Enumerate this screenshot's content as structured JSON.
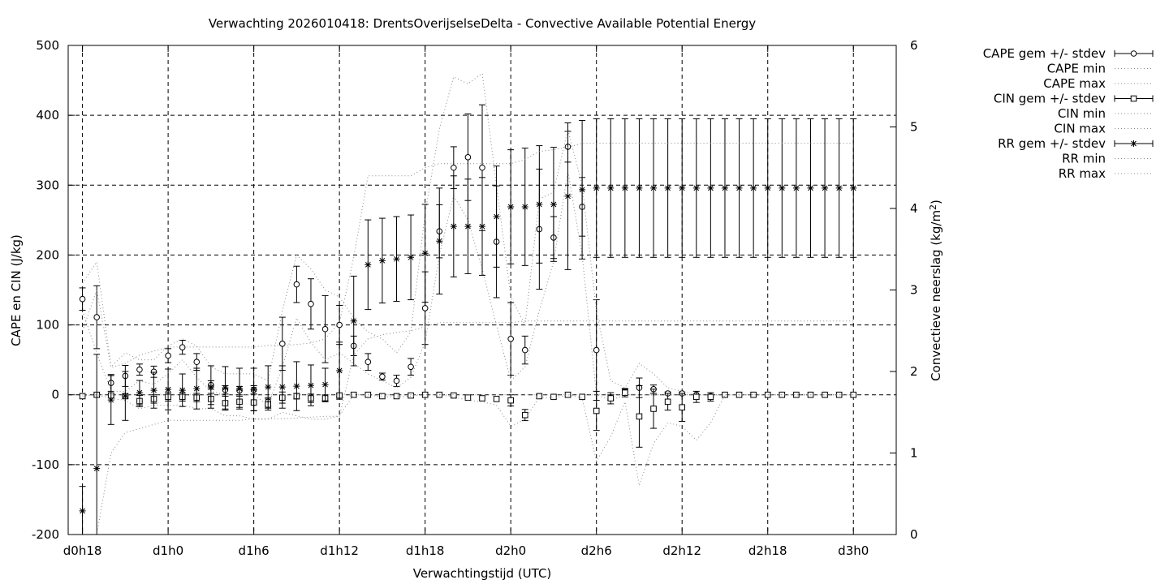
{
  "chart_data": {
    "type": "line",
    "title": "Verwachting 2026010418: DrentsOverijselseDelta - Convective Available Potential Energy",
    "xlabel": "Verwachtingstijd (UTC)",
    "ylabel": "CAPE en CIN (J/kg)",
    "y2label_main": "Convectieve neerslag (kg/m",
    "y2label_sup": "2",
    "y2label_end": ")",
    "ylim": [
      -200,
      500
    ],
    "y2lim": [
      0,
      6
    ],
    "xlim": [
      17,
      75
    ],
    "grid": "on",
    "legend_placement": "top-right outside",
    "x_ticks": [
      {
        "x": 18,
        "label": "d0h18"
      },
      {
        "x": 24,
        "label": "d1h0"
      },
      {
        "x": 30,
        "label": "d1h6"
      },
      {
        "x": 36,
        "label": "d1h12"
      },
      {
        "x": 42,
        "label": "d1h18"
      },
      {
        "x": 48,
        "label": "d2h0"
      },
      {
        "x": 54,
        "label": "d2h6"
      },
      {
        "x": 60,
        "label": "d2h12"
      },
      {
        "x": 66,
        "label": "d2h18"
      },
      {
        "x": 72,
        "label": "d3h0"
      }
    ],
    "y_ticks": [
      {
        "v": 500,
        "label": "500"
      },
      {
        "v": 400,
        "label": "400"
      },
      {
        "v": 300,
        "label": "300"
      },
      {
        "v": 200,
        "label": "200"
      },
      {
        "v": 100,
        "label": "100"
      },
      {
        "v": 0,
        "label": "0"
      },
      {
        "v": -100,
        "label": "-100"
      },
      {
        "v": -200,
        "label": "-200"
      }
    ],
    "y2_ticks": [
      {
        "v": 6,
        "label": "6"
      },
      {
        "v": 5,
        "label": "5"
      },
      {
        "v": 4,
        "label": "4"
      },
      {
        "v": 3,
        "label": "3"
      },
      {
        "v": 2,
        "label": "2"
      },
      {
        "v": 1,
        "label": "1"
      },
      {
        "v": 0,
        "label": "0"
      }
    ],
    "series": [
      {
        "name": "CAPE gem +/- stdev",
        "axis": "y1",
        "marker": "circle",
        "errorbars": true,
        "x": [
          18,
          19,
          20,
          21,
          22,
          23,
          24,
          25,
          26,
          27,
          28,
          29,
          30,
          31,
          32,
          33,
          34,
          35,
          36,
          37,
          38,
          39,
          40,
          41,
          42,
          43,
          44,
          45,
          46,
          47,
          48,
          49,
          50,
          51,
          52,
          53,
          54,
          55,
          56,
          57,
          58,
          59,
          60,
          61,
          62,
          63,
          64,
          65,
          66,
          67,
          68,
          69,
          70,
          71,
          72
        ],
        "values": [
          137,
          111,
          17,
          27,
          36,
          33,
          56,
          68,
          47,
          14,
          7,
          6,
          7,
          -10,
          73,
          158,
          130,
          94,
          100,
          70,
          47,
          26,
          20,
          40,
          124,
          234,
          325,
          340,
          325,
          219,
          80,
          64,
          237,
          225,
          355,
          269,
          64,
          -4,
          4,
          10,
          8,
          2,
          2,
          0,
          -2,
          0,
          0,
          0,
          0,
          0,
          0,
          0,
          0,
          0,
          0
        ],
        "stdev": [
          16,
          45,
          12,
          15,
          8,
          8,
          10,
          10,
          12,
          6,
          6,
          6,
          6,
          6,
          38,
          26,
          36,
          48,
          28,
          14,
          12,
          5,
          8,
          12,
          52,
          38,
          30,
          62,
          90,
          80,
          52,
          20,
          86,
          30,
          22,
          42,
          72,
          4,
          4,
          14,
          6,
          2,
          2,
          0,
          0,
          0,
          0,
          0,
          0,
          0,
          0,
          0,
          0,
          0,
          0
        ]
      },
      {
        "name": "CAPE min",
        "axis": "y1",
        "line": "dotted",
        "x": [
          18,
          19,
          20,
          21,
          22,
          23,
          24,
          25,
          26,
          27,
          28,
          29,
          30,
          31,
          32,
          33,
          34,
          35,
          36,
          37,
          38,
          39,
          40,
          41,
          42,
          43,
          44,
          45,
          46,
          47,
          48,
          49,
          50,
          51,
          52,
          53,
          54,
          55,
          56,
          57,
          58,
          59,
          60,
          61,
          62,
          63,
          64,
          65,
          66,
          67,
          68,
          69,
          70,
          71,
          72
        ],
        "values": [
          120,
          60,
          5,
          5,
          20,
          15,
          30,
          50,
          25,
          5,
          0,
          0,
          0,
          -15,
          40,
          110,
          75,
          50,
          60,
          45,
          30,
          20,
          10,
          25,
          75,
          200,
          285,
          250,
          180,
          100,
          20,
          40,
          120,
          190,
          320,
          200,
          0,
          -8,
          0,
          0,
          0,
          0,
          0,
          0,
          0,
          0,
          0,
          0,
          0,
          0,
          0,
          0,
          0,
          0,
          0
        ]
      },
      {
        "name": "CAPE max",
        "axis": "y1",
        "line": "dotted",
        "x": [
          18,
          19,
          20,
          21,
          22,
          23,
          24,
          25,
          26,
          27,
          28,
          29,
          30,
          31,
          32,
          33,
          34,
          35,
          36,
          37,
          38,
          39,
          40,
          41,
          42,
          43,
          44,
          45,
          46,
          47,
          48,
          49,
          50,
          51,
          52,
          53,
          54,
          55,
          56,
          57,
          58,
          59,
          60,
          61,
          62,
          63,
          64,
          65,
          66,
          67,
          68,
          69,
          70,
          71,
          72
        ],
        "values": [
          160,
          190,
          40,
          60,
          50,
          50,
          70,
          80,
          70,
          40,
          30,
          30,
          30,
          20,
          120,
          200,
          180,
          150,
          140,
          110,
          90,
          80,
          60,
          90,
          260,
          380,
          455,
          445,
          460,
          300,
          140,
          100,
          280,
          290,
          380,
          300,
          120,
          20,
          10,
          45,
          30,
          10,
          5,
          0,
          0,
          0,
          0,
          0,
          0,
          0,
          0,
          0,
          0,
          0,
          0
        ]
      },
      {
        "name": "CIN gem +/- stdev",
        "axis": "y1",
        "marker": "square",
        "errorbars": true,
        "x": [
          18,
          19,
          20,
          21,
          22,
          23,
          24,
          25,
          26,
          27,
          28,
          29,
          30,
          31,
          32,
          33,
          34,
          35,
          36,
          37,
          38,
          39,
          40,
          41,
          42,
          43,
          44,
          45,
          46,
          47,
          48,
          49,
          50,
          51,
          52,
          53,
          54,
          55,
          56,
          57,
          58,
          59,
          60,
          61,
          62,
          63,
          64,
          65,
          66,
          67,
          68,
          69,
          70,
          71,
          72
        ],
        "values": [
          -2,
          0,
          -1,
          -2,
          -9,
          -6,
          -3,
          -3,
          -4,
          -6,
          -12,
          -10,
          -11,
          -14,
          -4,
          -2,
          -5,
          -5,
          -1,
          0,
          0,
          -2,
          -2,
          -1,
          0,
          0,
          -1,
          -4,
          -5,
          -6,
          -8,
          -29,
          -2,
          -3,
          0,
          -3,
          -23,
          -5,
          3,
          -31,
          -20,
          -10,
          -18,
          -3,
          -3,
          0,
          0,
          0,
          0,
          0,
          0,
          0,
          0,
          0,
          0
        ],
        "stdev": [
          0,
          0,
          2,
          3,
          8,
          6,
          6,
          6,
          6,
          8,
          10,
          8,
          12,
          8,
          8,
          4,
          6,
          5,
          2,
          0,
          0,
          0,
          0,
          0,
          0,
          0,
          0,
          0,
          0,
          0,
          8,
          8,
          0,
          0,
          0,
          0,
          28,
          8,
          6,
          44,
          28,
          12,
          20,
          8,
          6,
          0,
          0,
          0,
          0,
          0,
          0,
          0,
          0,
          0,
          0
        ]
      },
      {
        "name": "CIN min",
        "axis": "y1",
        "line": "dotted",
        "x": [
          18,
          19,
          20,
          21,
          22,
          23,
          24,
          25,
          26,
          27,
          28,
          29,
          30,
          31,
          32,
          33,
          34,
          35,
          36,
          37,
          38,
          39,
          40,
          41,
          42,
          43,
          44,
          45,
          46,
          47,
          48,
          49,
          50,
          51,
          52,
          53,
          54,
          55,
          56,
          57,
          58,
          59,
          60,
          61,
          62,
          63,
          64,
          65,
          66,
          67,
          68,
          69,
          70,
          71,
          72
        ],
        "values": [
          -2,
          0,
          -5,
          -8,
          -20,
          -15,
          -15,
          -15,
          -20,
          -20,
          -30,
          -30,
          -35,
          -35,
          -25,
          -30,
          -35,
          -35,
          -30,
          0,
          0,
          -3,
          -3,
          -2,
          0,
          0,
          -3,
          -8,
          -10,
          -15,
          -45,
          -35,
          -3,
          -5,
          0,
          -5,
          -95,
          -60,
          -10,
          -130,
          -70,
          -40,
          -45,
          -65,
          -40,
          0,
          0,
          0,
          0,
          0,
          0,
          0,
          0,
          0,
          0
        ]
      },
      {
        "name": "CIN max",
        "axis": "y1",
        "line": "dotted",
        "x": [
          18,
          19,
          20,
          21,
          22,
          23,
          24,
          25,
          26,
          27,
          28,
          29,
          30,
          31,
          32,
          33,
          34,
          35,
          36,
          37,
          38,
          39,
          40,
          41,
          42,
          43,
          44,
          45,
          46,
          47,
          48,
          49,
          50,
          51,
          52,
          53,
          54,
          55,
          56,
          57,
          58,
          59,
          60,
          61,
          62,
          63,
          64,
          65,
          66,
          67,
          68,
          69,
          70,
          71,
          72
        ],
        "values": [
          0,
          0,
          0,
          0,
          0,
          0,
          0,
          0,
          0,
          0,
          0,
          0,
          0,
          0,
          0,
          0,
          0,
          0,
          0,
          0,
          0,
          0,
          0,
          0,
          0,
          0,
          0,
          0,
          0,
          0,
          0,
          0,
          0,
          0,
          0,
          0,
          0,
          0,
          0,
          0,
          0,
          0,
          0,
          0,
          0,
          0,
          0,
          0,
          0,
          0,
          0,
          0,
          0,
          0,
          0
        ]
      },
      {
        "name": "RR gem +/- stdev",
        "axis": "y2",
        "marker": "star",
        "errorbars": true,
        "x": [
          18,
          19,
          20,
          21,
          22,
          23,
          24,
          25,
          26,
          27,
          28,
          29,
          30,
          31,
          32,
          33,
          34,
          35,
          36,
          37,
          38,
          39,
          40,
          41,
          42,
          43,
          44,
          45,
          46,
          47,
          48,
          49,
          50,
          51,
          52,
          53,
          54,
          55,
          56,
          57,
          58,
          59,
          60,
          61,
          62,
          63,
          64,
          65,
          66,
          67,
          68,
          69,
          70,
          71,
          72
        ],
        "values": [
          0.29,
          0.81,
          1.65,
          1.7,
          1.74,
          1.77,
          1.78,
          1.77,
          1.79,
          1.81,
          1.8,
          1.79,
          1.78,
          1.81,
          1.81,
          1.82,
          1.83,
          1.84,
          2.01,
          2.62,
          3.31,
          3.36,
          3.38,
          3.4,
          3.45,
          3.6,
          3.78,
          3.78,
          3.78,
          3.9,
          4.02,
          4.02,
          4.05,
          4.05,
          4.15,
          4.23,
          4.25,
          4.25,
          4.25,
          4.25,
          4.25,
          4.25,
          4.25,
          4.25,
          4.25,
          4.25,
          4.25,
          4.25,
          4.25,
          4.25,
          4.25,
          4.25,
          4.25,
          4.25,
          4.25
        ],
        "stdev": [
          0.3,
          1.4,
          0.3,
          0.3,
          0.15,
          0.22,
          0.25,
          0.2,
          0.25,
          0.26,
          0.26,
          0.25,
          0.26,
          0.26,
          0.26,
          0.3,
          0.25,
          0.2,
          0.35,
          0.55,
          0.55,
          0.52,
          0.52,
          0.52,
          0.6,
          0.65,
          0.62,
          0.58,
          0.6,
          0.62,
          0.7,
          0.72,
          0.72,
          0.7,
          0.9,
          0.85,
          0.85,
          0.85,
          0.85,
          0.85,
          0.85,
          0.85,
          0.85,
          0.85,
          0.85,
          0.85,
          0.85,
          0.85,
          0.85,
          0.85,
          0.85,
          0.85,
          0.85,
          0.85,
          0.85
        ]
      },
      {
        "name": "RR min",
        "axis": "y2",
        "line": "dotted",
        "x": [
          18,
          19,
          20,
          21,
          22,
          23,
          24,
          25,
          26,
          27,
          28,
          29,
          30,
          31,
          32,
          33,
          34,
          35,
          36,
          37,
          38,
          39,
          40,
          41,
          42,
          43,
          44,
          45,
          46,
          47,
          48,
          49,
          50,
          51,
          52,
          53,
          54,
          55,
          56,
          57,
          58,
          59,
          60,
          61,
          62,
          63,
          64,
          65,
          66,
          67,
          68,
          69,
          70,
          71,
          72
        ],
        "values": [
          0,
          0,
          1.0,
          1.25,
          1.3,
          1.35,
          1.4,
          1.4,
          1.4,
          1.4,
          1.4,
          1.4,
          1.42,
          1.42,
          1.42,
          1.43,
          1.44,
          1.45,
          1.45,
          2.2,
          2.4,
          2.45,
          2.48,
          2.5,
          2.55,
          2.6,
          2.6,
          2.6,
          2.6,
          2.6,
          2.6,
          2.62,
          2.62,
          2.62,
          2.62,
          2.62,
          2.62,
          2.62,
          2.62,
          2.62,
          2.62,
          2.62,
          2.62,
          2.62,
          2.62,
          2.62,
          2.62,
          2.62,
          2.62,
          2.62,
          2.62,
          2.62,
          2.62,
          2.62,
          2.62
        ]
      },
      {
        "name": "RR max",
        "axis": "y2",
        "line": "dotted",
        "x": [
          18,
          19,
          20,
          21,
          22,
          23,
          24,
          25,
          26,
          27,
          28,
          29,
          30,
          31,
          32,
          33,
          34,
          35,
          36,
          37,
          38,
          39,
          40,
          41,
          42,
          43,
          44,
          45,
          46,
          47,
          48,
          49,
          50,
          51,
          52,
          53,
          54,
          55,
          56,
          57,
          58,
          59,
          60,
          61,
          62,
          63,
          64,
          65,
          66,
          67,
          68,
          69,
          70,
          71,
          72
        ],
        "values": [
          2.5,
          3.0,
          2.05,
          2.1,
          2.2,
          2.25,
          2.3,
          2.3,
          2.3,
          2.3,
          2.3,
          2.3,
          2.3,
          2.32,
          2.32,
          2.33,
          2.35,
          2.4,
          2.6,
          3.4,
          4.4,
          4.4,
          4.4,
          4.4,
          4.5,
          4.55,
          4.55,
          4.55,
          4.55,
          4.55,
          4.55,
          4.6,
          4.7,
          4.72,
          4.75,
          4.8,
          4.8,
          4.8,
          4.8,
          4.8,
          4.8,
          4.8,
          4.8,
          4.8,
          4.8,
          4.8,
          4.8,
          4.8,
          4.8,
          4.8,
          4.8,
          4.8,
          4.8,
          4.8,
          4.8
        ]
      }
    ]
  }
}
